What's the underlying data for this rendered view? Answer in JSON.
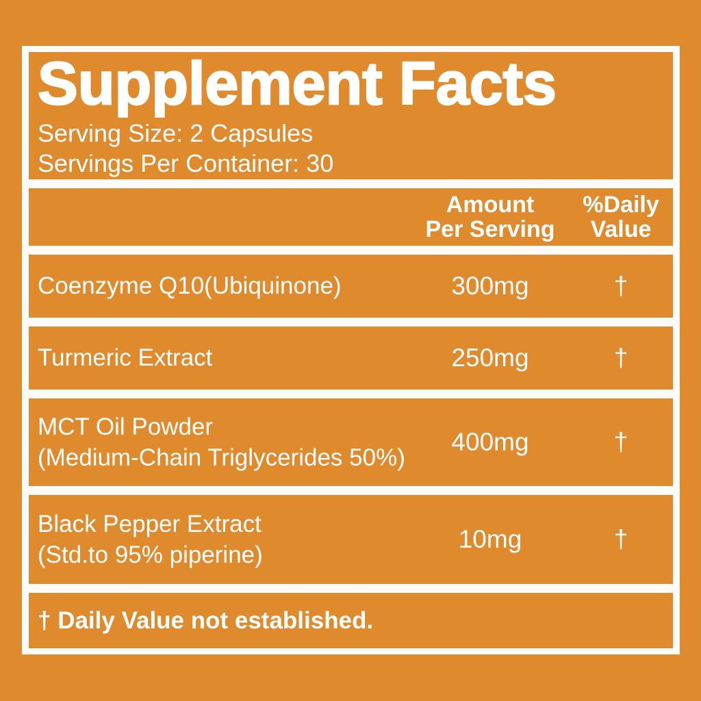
{
  "colors": {
    "background": "#E08A2E",
    "panel": "#E08A2E",
    "frame": "#FCFBF7",
    "text": "#FFFFFF"
  },
  "label": {
    "title": "Supplement Facts",
    "serving_size": "Serving Size: 2 Capsules",
    "servings_per_container": "Servings Per Container: 30",
    "columns": {
      "amount": "Amount\nPer Serving",
      "daily": "%Daily\nValue"
    },
    "rows": [
      {
        "name": "Coenzyme Q10(Ubiquinone)",
        "amount": "300mg",
        "daily": "†"
      },
      {
        "name": "Turmeric Extract",
        "amount": "250mg",
        "daily": "†"
      },
      {
        "name": "MCT Oil Powder\n(Medium-Chain Triglycerides 50%)",
        "amount": "400mg",
        "daily": "†"
      },
      {
        "name": "Black Pepper Extract\n(Std.to 95% piperine)",
        "amount": "10mg",
        "daily": "†"
      }
    ],
    "footnote": "† Daily Value not established."
  }
}
